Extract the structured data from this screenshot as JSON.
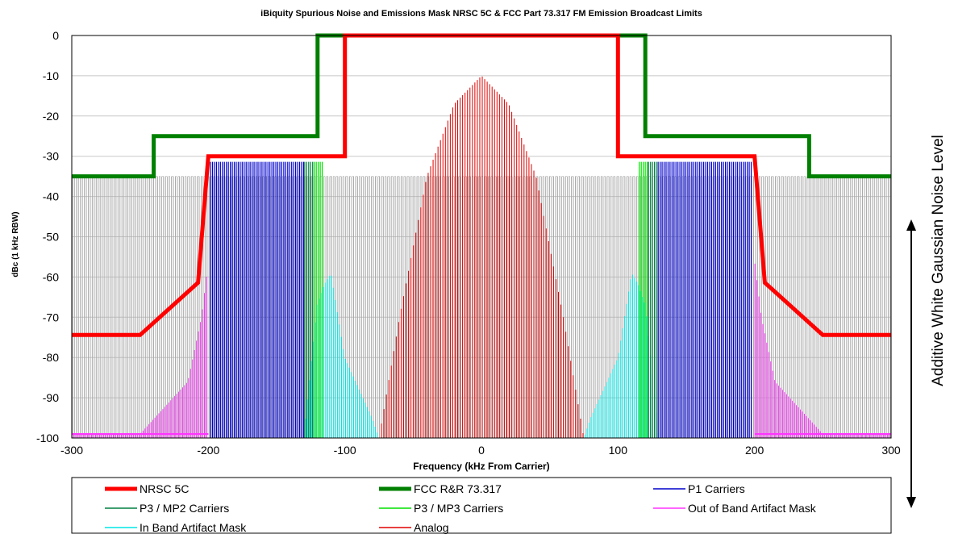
{
  "chart_data": {
    "type": "line",
    "title": "iBiquity Spurious Noise and Emissions Mask NRSC 5C & FCC Part 73.317 FM Emission Broadcast Limits",
    "xlabel": "Frequency (kHz From Carrier)",
    "ylabel": "dBc (1 kHz RBW)",
    "side_annotation": "Additive White Gaussian Noise Level",
    "xlim": [
      -300,
      300
    ],
    "ylim": [
      -100,
      0
    ],
    "x_ticks": [
      "-300",
      "-200",
      "-100",
      "0",
      "100",
      "200",
      "300"
    ],
    "y_ticks": [
      "0",
      "-10",
      "-20",
      "-30",
      "-40",
      "-50",
      "-60",
      "-70",
      "-80",
      "-90",
      "-100"
    ],
    "grid": "horizontal",
    "legend_position": "bottom",
    "noise_floor_db": -35,
    "series": [
      {
        "name": "NRSC 5C",
        "color": "#ff0000",
        "style": "line",
        "points": [
          [
            -300,
            -74.4
          ],
          [
            -250,
            -74.4
          ],
          [
            -207.5,
            -61.4
          ],
          [
            -200,
            -30
          ],
          [
            -100,
            -30
          ],
          [
            -100,
            0
          ],
          [
            100,
            0
          ],
          [
            100,
            -30
          ],
          [
            200,
            -30
          ],
          [
            207.5,
            -61.4
          ],
          [
            250,
            -74.4
          ],
          [
            300,
            -74.4
          ]
        ]
      },
      {
        "name": "FCC R&R 73.317",
        "color": "#008000",
        "style": "line",
        "points": [
          [
            -300,
            -35
          ],
          [
            -240,
            -35
          ],
          [
            -240,
            -25
          ],
          [
            -120,
            -25
          ],
          [
            -120,
            0
          ],
          [
            120,
            0
          ],
          [
            120,
            -25
          ],
          [
            240,
            -25
          ],
          [
            240,
            -35
          ],
          [
            300,
            -35
          ]
        ]
      },
      {
        "name": "P1 Carriers",
        "color": "#0000cc",
        "style": "carriers",
        "range": [
          [
            -198.4,
            -129.4
          ],
          [
            129.4,
            198.4
          ]
        ],
        "level": -31.4
      },
      {
        "name": "P3 / MP2 Carriers",
        "color": "#008040",
        "style": "carriers",
        "range": [
          [
            -129.4,
            -122.4
          ],
          [
            122.4,
            129.4
          ]
        ],
        "level": -31.4
      },
      {
        "name": "P3 / MP3 Carriers",
        "color": "#00e000",
        "style": "carriers",
        "range": [
          [
            -122.4,
            -115.6
          ],
          [
            115.6,
            122.4
          ]
        ],
        "level": -31.4
      },
      {
        "name": "Out of Band Artifact Mask",
        "color": "#ff33ff",
        "style": "carriers",
        "points": [
          [
            -300,
            -99
          ],
          [
            -250,
            -99
          ],
          [
            -215,
            -86
          ],
          [
            -205,
            -70
          ],
          [
            -200,
            -56
          ],
          [
            200,
            -56
          ],
          [
            205,
            -70
          ],
          [
            215,
            -86
          ],
          [
            250,
            -99
          ],
          [
            300,
            -99
          ]
        ]
      },
      {
        "name": "In Band Artifact Mask",
        "color": "#00e5e5",
        "style": "carriers",
        "points": [
          [
            -130,
            -100
          ],
          [
            -120,
            -67
          ],
          [
            -115,
            -62
          ],
          [
            -110,
            -59
          ],
          [
            -100,
            -80
          ],
          [
            -80,
            -95
          ],
          [
            -75,
            -100
          ],
          [
            75,
            -100
          ],
          [
            80,
            -95
          ],
          [
            100,
            -80
          ],
          [
            110,
            -59
          ],
          [
            115,
            -62
          ],
          [
            120,
            -67
          ],
          [
            130,
            -100
          ]
        ]
      },
      {
        "name": "Analog",
        "color": "#e00000",
        "style": "carriers",
        "points": [
          [
            -75,
            -100
          ],
          [
            -60,
            -70
          ],
          [
            -40,
            -35
          ],
          [
            -20,
            -17
          ],
          [
            0,
            -10
          ],
          [
            20,
            -17
          ],
          [
            40,
            -35
          ],
          [
            60,
            -70
          ],
          [
            75,
            -100
          ]
        ]
      }
    ]
  }
}
